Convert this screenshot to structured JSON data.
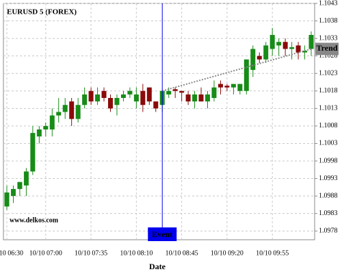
{
  "chart_data": {
    "type": "candlestick",
    "title": "EURUSD 5 (FOREX)",
    "watermark": "www.delkos.com",
    "x_label": "Date",
    "categories": [
      "10/10 06:30",
      null,
      null,
      null,
      null,
      null,
      "10/10 07:00",
      null,
      null,
      null,
      null,
      null,
      null,
      "10/10 07:35",
      null,
      null,
      null,
      null,
      null,
      null,
      "10/10 08:10",
      null,
      null,
      null,
      null,
      null,
      null,
      "10/10 08:45",
      null,
      null,
      null,
      null,
      null,
      null,
      "10/10 09:20",
      null,
      null,
      null,
      null,
      null,
      null,
      "10/10 09:55",
      null,
      null,
      null,
      null,
      null,
      null
    ],
    "open": [
      1.0985,
      1.0988,
      1.099,
      1.0991,
      1.0995,
      1.1005,
      1.1007,
      1.1007,
      1.1011,
      1.1012,
      1.1015,
      1.101,
      1.1014,
      1.1018,
      1.1015,
      1.1018,
      1.1016,
      1.1014,
      1.1016,
      1.1017,
      1.1015,
      1.1018,
      1.1019,
      1.1015,
      1.1014,
      1.1017,
      1.10185,
      1.1018,
      1.1017,
      1.1015,
      1.1017,
      1.1015,
      1.1016,
      1.102,
      1.10195,
      1.1019,
      1.1018,
      1.1018,
      1.1024,
      1.1028,
      1.1027,
      1.103,
      1.1031,
      1.1032,
      1.103,
      1.1031,
      1.1029,
      1.103
    ],
    "high": [
      1.0991,
      1.0991,
      1.0992,
      1.0996,
      1.1008,
      1.1008,
      1.1009,
      1.1013,
      1.1016,
      1.1016,
      1.1016,
      1.1016,
      1.1019,
      1.1019,
      1.1019,
      1.1019,
      1.1017,
      1.1017,
      1.1018,
      1.1019,
      1.1019,
      1.102,
      1.1019,
      1.1015,
      1.1018,
      1.1019,
      1.1019,
      1.1018,
      1.1018,
      1.1018,
      1.1019,
      1.1018,
      1.1021,
      1.1021,
      1.102,
      1.102,
      1.102,
      1.1027,
      1.1031,
      1.1029,
      1.1032,
      1.1036,
      1.1033,
      1.1033,
      1.1032,
      1.1032,
      1.1031,
      1.1035
    ],
    "low": [
      1.0984,
      1.0986,
      1.0988,
      1.0988,
      1.0994,
      1.1003,
      1.1005,
      1.1005,
      1.1009,
      1.101,
      1.1008,
      1.1009,
      1.1013,
      1.1014,
      1.1014,
      1.1015,
      1.1012,
      1.1011,
      1.1015,
      1.1016,
      1.1013,
      1.1012,
      1.1014,
      1.1012,
      1.1012,
      1.1016,
      1.1016,
      1.1015,
      1.1014,
      1.1013,
      1.1015,
      1.1013,
      1.1015,
      1.1017,
      1.1018,
      1.1017,
      1.1017,
      1.1017,
      1.1022,
      1.1026,
      1.1026,
      1.1028,
      1.1028,
      1.1028,
      1.1027,
      1.1027,
      1.1027,
      1.1028
    ],
    "close": [
      1.0989,
      1.099,
      1.0992,
      1.0995,
      1.1006,
      1.1007,
      1.1008,
      1.1011,
      1.1012,
      1.1014,
      1.101,
      1.1014,
      1.1017,
      1.1015,
      1.1017,
      1.1016,
      1.1013,
      1.1016,
      1.1017,
      1.1018,
      1.1017,
      1.1014,
      1.1015,
      1.1013,
      1.1018,
      1.1018,
      1.1018,
      1.10175,
      1.1015,
      1.1017,
      1.1015,
      1.1017,
      1.1019,
      1.1019,
      1.1019,
      1.102,
      1.102,
      1.1027,
      1.103,
      1.1027,
      1.1031,
      1.1034,
      1.1032,
      1.103,
      1.10305,
      1.1029,
      1.10295,
      1.1034
    ],
    "up_color": "#178c17",
    "down_color": "#8b0a0a",
    "ylim": [
      1.09755,
      1.1043
    ],
    "yticks": [
      1.0978,
      1.0983,
      1.0988,
      1.0993,
      1.0998,
      1.1003,
      1.1008,
      1.1013,
      1.1018,
      1.1023,
      1.1028,
      1.1033,
      1.1038,
      1.1043
    ],
    "grid": true,
    "event": {
      "label": "Event",
      "index": 24,
      "color": "#0000ee"
    },
    "trend": {
      "label": "Trend",
      "from_index": 24,
      "to_index": 47,
      "values": [
        1.1018,
        1.103
      ],
      "color": "#888888"
    }
  }
}
